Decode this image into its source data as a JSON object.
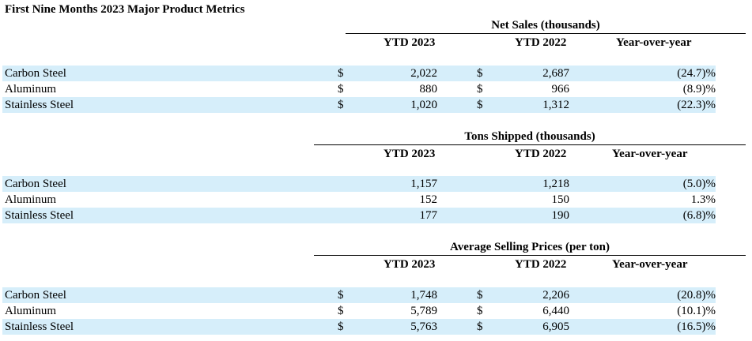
{
  "title": "First Nine Months 2023 Major Product Metrics",
  "columns": {
    "c1": "YTD 2023",
    "c2": "YTD 2022",
    "c3": "Year-over-year"
  },
  "sections": [
    {
      "header": "Net Sales (thousands)",
      "rows": [
        {
          "label": "Carbon Steel",
          "d1": "$",
          "v1": "2,022",
          "d2": "$",
          "v2": "2,687",
          "yoy": "(24.7)%",
          "shaded": true
        },
        {
          "label": "Aluminum",
          "d1": "$",
          "v1": "880",
          "d2": "$",
          "v2": "966",
          "yoy": "(8.9)%",
          "shaded": false
        },
        {
          "label": "Stainless Steel",
          "d1": "$",
          "v1": "1,020",
          "d2": "$",
          "v2": "1,312",
          "yoy": "(22.3)%",
          "shaded": true
        }
      ]
    },
    {
      "header": "Tons Shipped (thousands)",
      "rows": [
        {
          "label": "Carbon Steel",
          "d1": "",
          "v1": "1,157",
          "d2": "",
          "v2": "1,218",
          "yoy": "(5.0)%",
          "shaded": true
        },
        {
          "label": "Aluminum",
          "d1": "",
          "v1": "152",
          "d2": "",
          "v2": "150",
          "yoy": "1.3%",
          "shaded": false
        },
        {
          "label": "Stainless Steel",
          "d1": "",
          "v1": "177",
          "d2": "",
          "v2": "190",
          "yoy": "(6.8)%",
          "shaded": true
        }
      ]
    },
    {
      "header": "Average Selling Prices (per ton)",
      "rows": [
        {
          "label": "Carbon Steel",
          "d1": "$",
          "v1": "1,748",
          "d2": "$",
          "v2": "2,206",
          "yoy": "(20.8)%",
          "shaded": true
        },
        {
          "label": "Aluminum",
          "d1": "$",
          "v1": "5,789",
          "d2": "$",
          "v2": "6,440",
          "yoy": "(10.1)%",
          "shaded": false
        },
        {
          "label": "Stainless Steel",
          "d1": "$",
          "v1": "5,763",
          "d2": "$",
          "v2": "6,905",
          "yoy": "(16.5)%",
          "shaded": true
        }
      ]
    }
  ]
}
